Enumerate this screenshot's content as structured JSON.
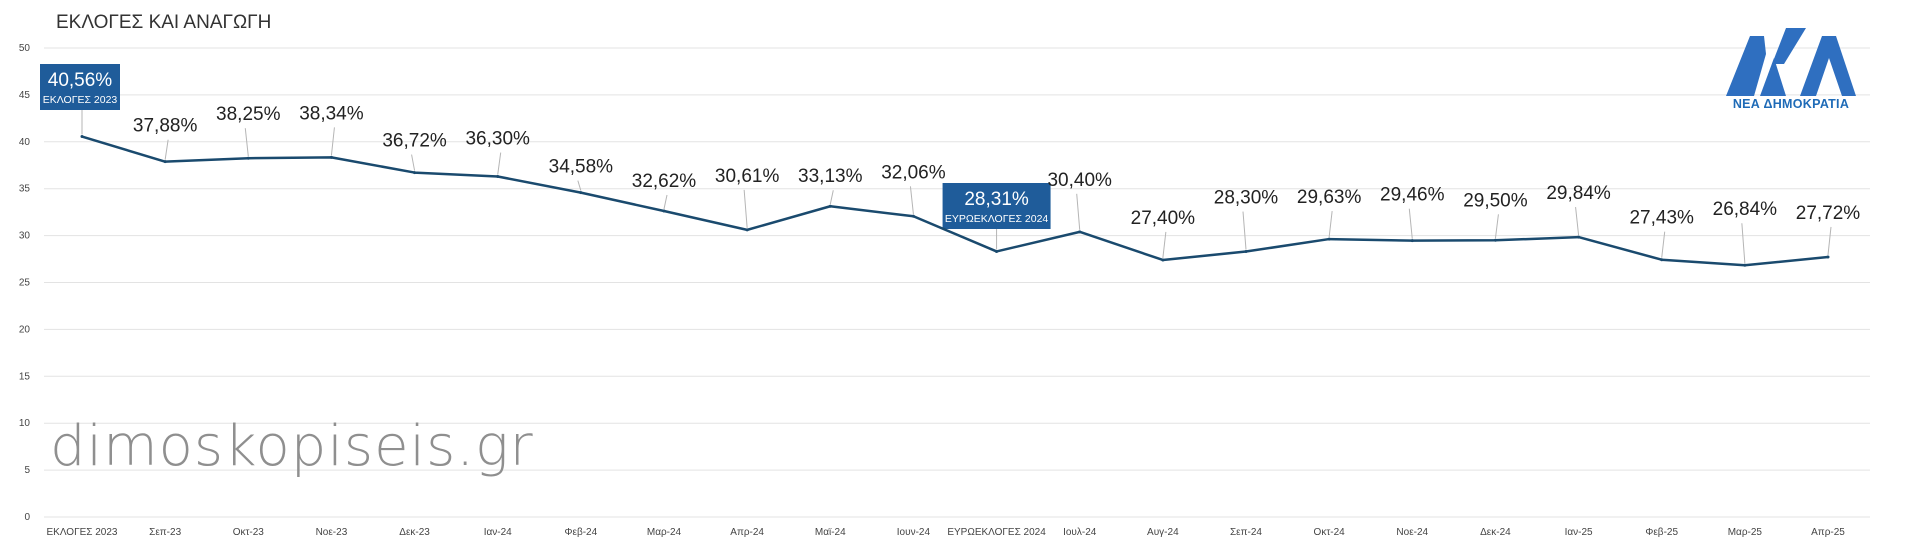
{
  "title": "ΕΚΛΟΓΕΣ ΚΑΙ ΑΝΑΓΩΓΗ",
  "watermark": "dimoskopiseis.gr",
  "logo": {
    "icon": "nd-logo",
    "label": "ΝΕΑ ΔΗΜΟΚΡΑΤΙΑ",
    "color": "#2f6fc0"
  },
  "colors": {
    "line": "#1a4a6e",
    "grid": "#e3e3e3",
    "highlight_box": "#1f5c9a",
    "text": "#222222",
    "tick": "#444444"
  },
  "chart_data": {
    "type": "line",
    "title": "ΕΚΛΟΓΕΣ ΚΑΙ ΑΝΑΓΩΓΗ",
    "xlabel": "",
    "ylabel": "",
    "ylim": [
      0,
      50
    ],
    "yticks": [
      0,
      5,
      10,
      15,
      20,
      25,
      30,
      35,
      40,
      45,
      50
    ],
    "grid": true,
    "legend": "none",
    "categories": [
      "ΕΚΛΟΓΕΣ 2023",
      "Σεπ-23",
      "Οκτ-23",
      "Νοε-23",
      "Δεκ-23",
      "Ιαν-24",
      "Φεβ-24",
      "Μαρ-24",
      "Απρ-24",
      "Μαϊ-24",
      "Ιουν-24",
      "ΕΥΡΩΕΚΛΟΓΕΣ 2024",
      "Ιουλ-24",
      "Αυγ-24",
      "Σεπ-24",
      "Οκτ-24",
      "Νοε-24",
      "Δεκ-24",
      "Ιαν-25",
      "Φεβ-25",
      "Μαρ-25",
      "Απρ-25"
    ],
    "values": [
      40.56,
      37.88,
      38.25,
      38.34,
      36.72,
      36.3,
      34.58,
      32.62,
      30.61,
      33.13,
      32.06,
      28.31,
      30.4,
      27.4,
      28.3,
      29.63,
      29.46,
      29.5,
      29.84,
      27.43,
      26.84,
      27.72
    ],
    "data_labels": [
      "40,56%",
      "37,88%",
      "38,25%",
      "38,34%",
      "36,72%",
      "36,30%",
      "34,58%",
      "32,62%",
      "30,61%",
      "33,13%",
      "32,06%",
      "28,31%",
      "30,40%",
      "27,40%",
      "28,30%",
      "29,63%",
      "29,46%",
      "29,50%",
      "29,84%",
      "27,43%",
      "26,84%",
      "27,72%"
    ],
    "highlights": [
      {
        "index": 0,
        "label": "40,56%",
        "sublabel": "ΕΚΛΟΓΕΣ 2023"
      },
      {
        "index": 11,
        "label": "28,31%",
        "sublabel": "ΕΥΡΩΕΚΛΟΓΕΣ 2024"
      }
    ]
  }
}
